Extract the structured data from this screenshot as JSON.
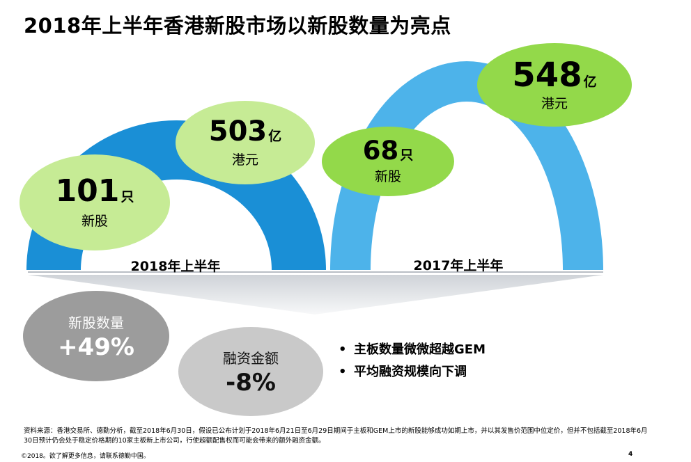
{
  "title": "2018年上半年香港新股市场以新股数量为亮点",
  "arch_2018": {
    "label": "2018年上半年",
    "ipo_count": {
      "value": "101",
      "unit": "只",
      "caption": "新股"
    },
    "funds": {
      "value": "503",
      "unit": "亿",
      "caption": "港元"
    }
  },
  "arch_2017": {
    "label": "2017年上半年",
    "ipo_count": {
      "value": "68",
      "unit": "只",
      "caption": "新股"
    },
    "funds": {
      "value": "548",
      "unit": "亿",
      "caption": "港元"
    }
  },
  "changes": {
    "ipo_count": {
      "label": "新股数量",
      "value": "+49%"
    },
    "funds": {
      "label": "融资金额",
      "value": "-8%"
    }
  },
  "bullets": [
    {
      "marker": "•",
      "text": "主板数量微微超越GEM"
    },
    {
      "marker": "•",
      "text": "平均融资规模向下调"
    }
  ],
  "source_note": "资料来源：香港交易所、德勤分析，截至2018年6月30日，假设已公布计划于2018年6月21日至6月29日期间于主板和GEM上市的新股能够成功如期上市，并以其发售价范围中位定价，但并不包括截至2018年6月30日预计仍会处于稳定价格期的10家主板新上市公司，行使超额配售权而可能会带来的额外融资金额。",
  "footer": "©2018。欲了解更多信息，请联系德勤中国。",
  "page_number": "4",
  "colors": {
    "arch_2018": "#1a8fd6",
    "arch_2017": "#4db3ea",
    "bubble_light": "#c6eb95",
    "bubble_mid": "#93d94a",
    "stat_gray_dark": "#9c9c9c",
    "stat_gray_light": "#c9c9c9"
  }
}
